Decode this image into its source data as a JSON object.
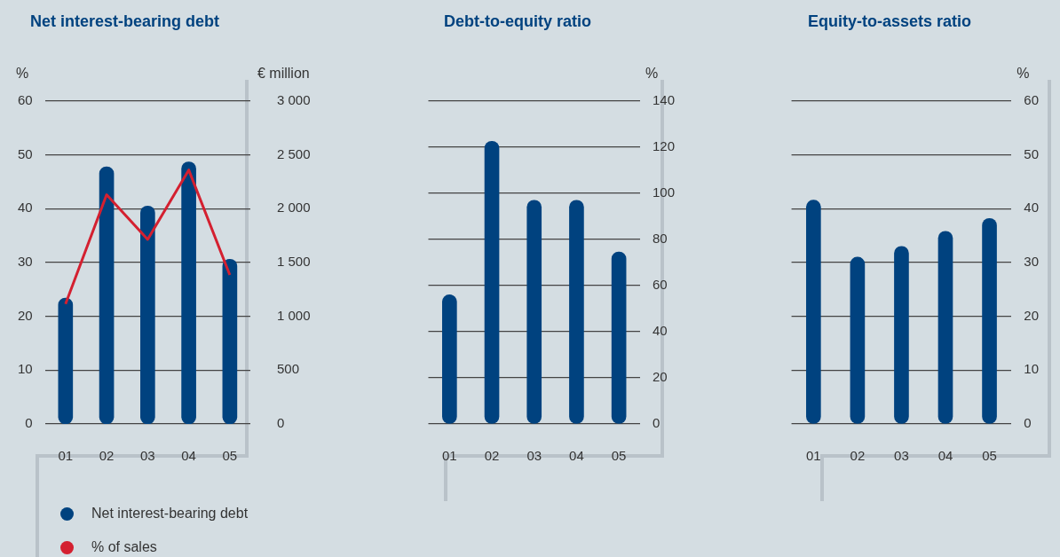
{
  "chart_data": [
    {
      "type": "bar",
      "title": "Net interest-bearing debt",
      "ylabel": "%",
      "y2label": "€ million",
      "categories": [
        "01",
        "02",
        "03",
        "04",
        "05"
      ],
      "series": [
        {
          "name": "Net interest-bearing debt",
          "color": "#00427f",
          "axis": "y2",
          "values": [
            1170,
            2390,
            2025,
            2435,
            1530
          ]
        },
        {
          "name": "% of sales",
          "type": "line",
          "color": "#d42030",
          "axis": "y",
          "values": [
            22.3,
            42.6,
            34.3,
            47.2,
            27.7
          ]
        }
      ],
      "ylim": [
        0,
        60
      ],
      "yticks": [
        0,
        10,
        20,
        30,
        40,
        50,
        60
      ],
      "y2lim": [
        0,
        3000
      ],
      "y2ticks": [
        0,
        {
          "value": 500,
          "label": "500"
        },
        {
          "value": 1000,
          "label": "1 000"
        },
        {
          "value": 1500,
          "label": "1 500"
        },
        {
          "value": 2000,
          "label": "2 000"
        },
        {
          "value": 2500,
          "label": "2 500"
        },
        {
          "value": 3000,
          "label": "3 000"
        }
      ],
      "grid": "y",
      "legend": "bottom",
      "marker": "none"
    },
    {
      "type": "bar",
      "title": "Debt-to-equity ratio",
      "ylabel": "%",
      "categories": [
        "01",
        "02",
        "03",
        "04",
        "05"
      ],
      "series": [
        {
          "color": "#00427f",
          "values": [
            56,
            122.6,
            97,
            97,
            74.6
          ]
        }
      ],
      "ylim": [
        0,
        140
      ],
      "yticks": [
        0,
        20,
        40,
        60,
        80,
        100,
        120,
        140
      ],
      "grid": "y"
    },
    {
      "type": "bar",
      "title": "Equity-to-assets ratio",
      "ylabel": "%",
      "categories": [
        "01",
        "02",
        "03",
        "04",
        "05"
      ],
      "series": [
        {
          "color": "#00427f",
          "values": [
            41.6,
            31,
            33,
            35.8,
            38.2
          ]
        }
      ],
      "ylim": [
        0,
        60
      ],
      "yticks": [
        0,
        10,
        20,
        30,
        40,
        50,
        60
      ],
      "grid": "y"
    }
  ]
}
